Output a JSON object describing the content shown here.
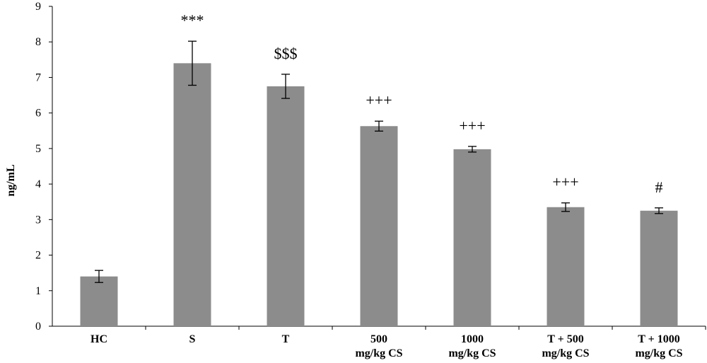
{
  "chart_data": {
    "type": "bar",
    "ylabel": "ng/mL",
    "ylim": [
      0,
      9
    ],
    "yticks": [
      0,
      1,
      2,
      3,
      4,
      5,
      6,
      7,
      8,
      9
    ],
    "grid": false,
    "bar_color": "#8c8c8c",
    "categories": [
      [
        "HC"
      ],
      [
        "S"
      ],
      [
        "T"
      ],
      [
        "500",
        "mg/kg CS"
      ],
      [
        "1000",
        "mg/kg CS"
      ],
      [
        "T + 500",
        "mg/kg CS"
      ],
      [
        "T + 1000",
        "mg/kg CS"
      ]
    ],
    "values": [
      1.4,
      7.4,
      6.75,
      5.63,
      4.98,
      3.35,
      3.25
    ],
    "errors": [
      0.17,
      0.62,
      0.34,
      0.14,
      0.08,
      0.12,
      0.08
    ],
    "annotations": [
      "",
      "***",
      "$$$",
      "+++",
      "+++",
      "+++",
      "#"
    ]
  }
}
